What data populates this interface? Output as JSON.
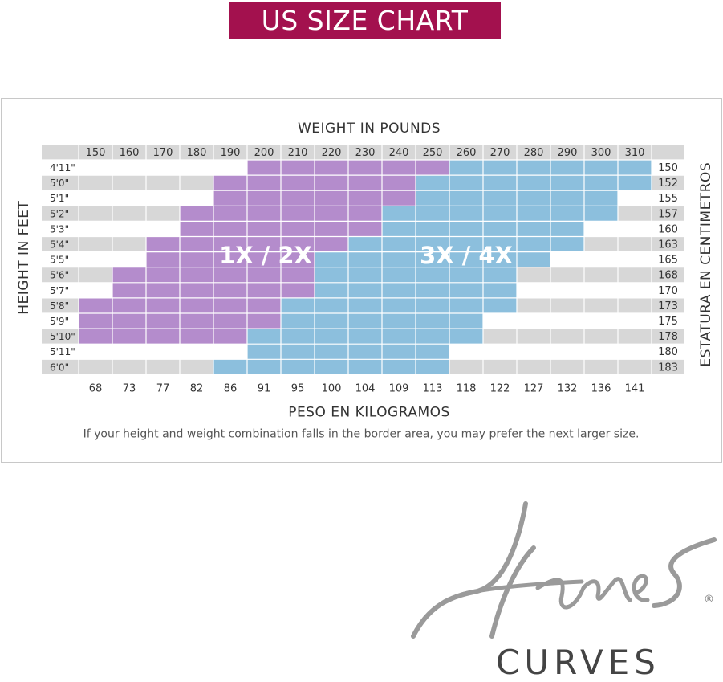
{
  "page_title": "US SIZE CHART",
  "chart_data": {
    "type": "heatmap",
    "x_top_label": "WEIGHT IN POUNDS",
    "x_bottom_label": "PESO EN KILOGRAMOS",
    "y_left_label": "HEIGHT IN FEET",
    "y_right_label": "ESTATURA EN CENTIMETROS",
    "x_pounds": [
      "150",
      "160",
      "170",
      "180",
      "190",
      "200",
      "210",
      "220",
      "230",
      "240",
      "250",
      "260",
      "270",
      "280",
      "290",
      "300",
      "310"
    ],
    "x_kilograms": [
      "68",
      "73",
      "77",
      "82",
      "86",
      "91",
      "95",
      "100",
      "104",
      "109",
      "113",
      "118",
      "122",
      "127",
      "132",
      "136",
      "141"
    ],
    "y_feet": [
      "4'11\"",
      "5'0\"",
      "5'1\"",
      "5'2\"",
      "5'3\"",
      "5'4\"",
      "5'5\"",
      "5'6\"",
      "5'7\"",
      "5'8\"",
      "5'9\"",
      "5'10\"",
      "5'11\"",
      "6'0\""
    ],
    "y_centimeters": [
      "150",
      "152",
      "155",
      "157",
      "160",
      "163",
      "165",
      "168",
      "170",
      "173",
      "175",
      "178",
      "180",
      "183"
    ],
    "sizes": [
      {
        "name": "1X/2X",
        "label": "1X / 2X",
        "color": "#b48ccc"
      },
      {
        "name": "3X/4X",
        "label": "3X / 4X",
        "color": "#8cbfdd"
      }
    ],
    "grid_colors": {
      "band": "#d7d7d7",
      "empty": "#ffffff"
    },
    "row_ranges_lbs": [
      {
        "height": "4'11\"",
        "size_1x2x": [
          200,
          250
        ],
        "size_3x4x": [
          260,
          310
        ]
      },
      {
        "height": "5'0\"",
        "size_1x2x": [
          190,
          240
        ],
        "size_3x4x": [
          250,
          310
        ]
      },
      {
        "height": "5'1\"",
        "size_1x2x": [
          190,
          240
        ],
        "size_3x4x": [
          250,
          300
        ]
      },
      {
        "height": "5'2\"",
        "size_1x2x": [
          180,
          230
        ],
        "size_3x4x": [
          240,
          300
        ]
      },
      {
        "height": "5'3\"",
        "size_1x2x": [
          180,
          230
        ],
        "size_3x4x": [
          240,
          290
        ]
      },
      {
        "height": "5'4\"",
        "size_1x2x": [
          170,
          220
        ],
        "size_3x4x": [
          230,
          290
        ]
      },
      {
        "height": "5'5\"",
        "size_1x2x": [
          170,
          210
        ],
        "size_3x4x": [
          220,
          280
        ]
      },
      {
        "height": "5'6\"",
        "size_1x2x": [
          160,
          210
        ],
        "size_3x4x": [
          220,
          270
        ]
      },
      {
        "height": "5'7\"",
        "size_1x2x": [
          160,
          210
        ],
        "size_3x4x": [
          220,
          270
        ]
      },
      {
        "height": "5'8\"",
        "size_1x2x": [
          150,
          200
        ],
        "size_3x4x": [
          210,
          270
        ]
      },
      {
        "height": "5'9\"",
        "size_1x2x": [
          150,
          200
        ],
        "size_3x4x": [
          210,
          260
        ]
      },
      {
        "height": "5'10\"",
        "size_1x2x": [
          150,
          190
        ],
        "size_3x4x": [
          200,
          260
        ]
      },
      {
        "height": "5'11\"",
        "size_1x2x": null,
        "size_3x4x": [
          200,
          250
        ]
      },
      {
        "height": "6'0\"",
        "size_1x2x": null,
        "size_3x4x": [
          190,
          250
        ]
      }
    ],
    "footnote": "If your height and weight combination falls in the border area, you may prefer the next larger size."
  },
  "logo": {
    "script_text": "Hanes",
    "sub_text": "CURVES",
    "registered_mark": "®"
  }
}
